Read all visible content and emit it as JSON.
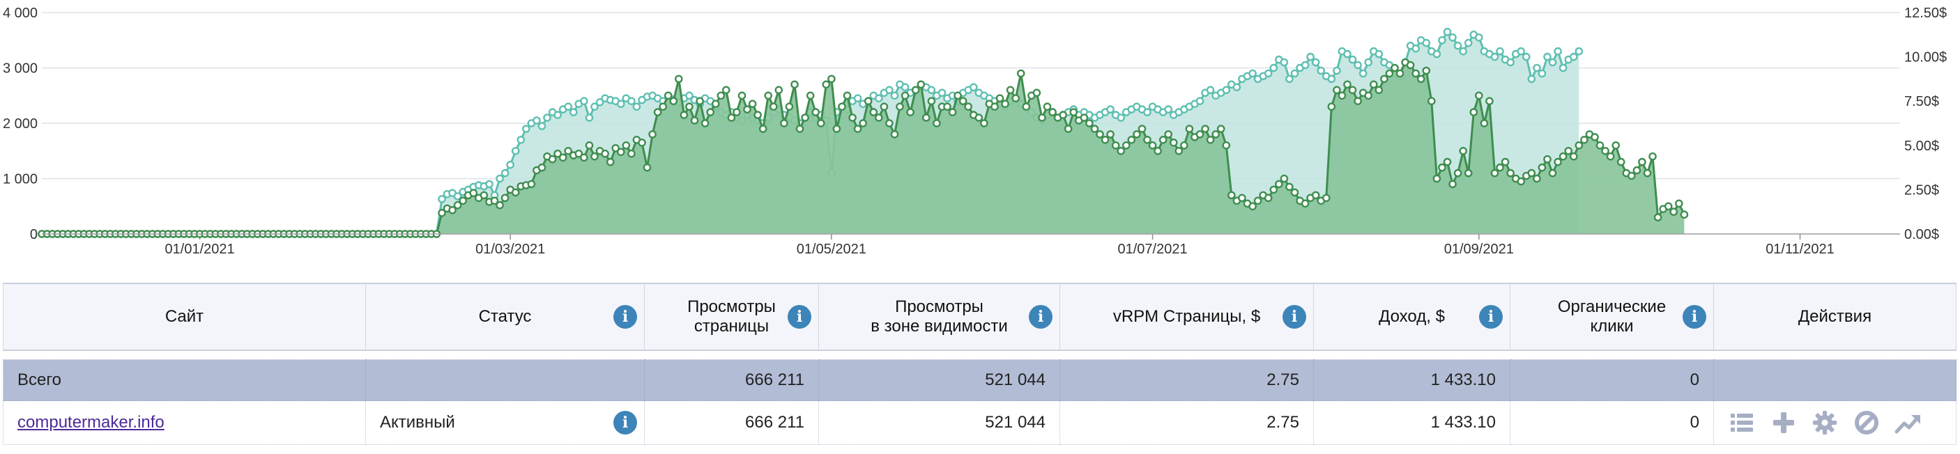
{
  "chart_data": {
    "type": "area",
    "x_ticks": [
      "01/01/2021",
      "01/03/2021",
      "01/05/2021",
      "01/07/2021",
      "01/09/2021",
      "01/11/2021"
    ],
    "y_ticks": [
      "0",
      "1 000",
      "2 000",
      "3 000",
      "4 000"
    ],
    "y2_ticks": [
      "0.00$",
      "2.50$",
      "5.00$",
      "7.50$",
      "10.00$",
      "12.50$"
    ],
    "ylim": [
      0,
      4000
    ],
    "y2lim": [
      0,
      12.5
    ],
    "grid": true,
    "colors": {
      "teal": "#5ebfb1",
      "teal_fill": "#bfe4df",
      "green": "#3f8d4f",
      "green_fill": "#87c49a"
    },
    "series": [
      {
        "axis": "left",
        "start": "2020-12-02",
        "values": [
          0,
          0,
          0,
          0,
          0,
          0,
          0,
          0,
          0,
          0,
          0,
          0,
          0,
          0,
          0,
          0,
          0,
          0,
          0,
          0,
          0,
          0,
          0,
          0,
          0,
          0,
          0,
          0,
          0,
          0,
          0,
          0,
          0,
          0,
          0,
          0,
          0,
          0,
          0,
          0,
          0,
          0,
          0,
          0,
          0,
          0,
          0,
          0,
          0,
          0,
          0,
          0,
          0,
          0,
          0,
          0,
          0,
          0,
          0,
          0,
          0,
          0,
          0,
          0,
          0,
          0,
          0,
          0,
          0,
          0,
          0,
          0,
          0,
          0,
          0,
          0,
          630,
          720,
          740,
          680,
          760,
          800,
          850,
          880,
          860,
          900,
          700,
          1000,
          1100,
          1250,
          1500,
          1700,
          1900,
          2000,
          2050,
          1950,
          2100,
          2200,
          2150,
          2250,
          2300,
          2200,
          2350,
          2400,
          2100,
          2300,
          2380,
          2450,
          2420,
          2400,
          2350,
          2450,
          2400,
          2300,
          2420,
          2480,
          2500,
          2450,
          2400,
          2500,
          2430,
          2380,
          2450,
          2500,
          2420,
          2350,
          2450,
          2400,
          2300,
          2200,
          2150,
          2200,
          2100,
          2050,
          2150,
          2100,
          2050,
          2000,
          2100,
          2200,
          2250,
          2150,
          2100,
          2050,
          2000,
          2100,
          2200,
          2100,
          2150,
          2050,
          1100,
          2200,
          2300,
          2250,
          2400,
          2450,
          2350,
          2400,
          2500,
          2450,
          2550,
          2600,
          2500,
          2700,
          2650,
          2550,
          2600,
          2700,
          2650,
          2600,
          2500,
          2550,
          2450,
          2500,
          2400,
          2550,
          2600,
          2650,
          2550,
          2500,
          2450,
          2400,
          2350,
          2300,
          2400,
          2450,
          2350,
          2300,
          2200,
          2100,
          2050,
          2150,
          2200,
          2100,
          2150,
          2200,
          2250,
          2150,
          2200,
          2150,
          2100,
          2150,
          2200,
          2250,
          2150,
          2100,
          2200,
          2250,
          2300,
          2250,
          2200,
          2300,
          2250,
          2200,
          2250,
          2150,
          2200,
          2250,
          2300,
          2350,
          2400,
          2550,
          2600,
          2500,
          2550,
          2600,
          2700,
          2650,
          2800,
          2850,
          2900,
          2800,
          2850,
          2900,
          3000,
          3150,
          3100,
          2800,
          2900,
          3000,
          3050,
          3200,
          3100,
          2950,
          2850,
          2800,
          2950,
          3300,
          3250,
          3150,
          3050,
          2900,
          3100,
          3300,
          3250,
          3100,
          3050,
          2900,
          2850,
          3100,
          3400,
          3350,
          3500,
          3450,
          3300,
          3250,
          3500,
          3650,
          3550,
          3400,
          3300,
          3450,
          3600,
          3550,
          3300,
          3250,
          3200,
          3300,
          3150,
          3100,
          3250,
          3300,
          3200,
          2800,
          3000,
          2900,
          3200,
          3100,
          3300,
          3000,
          3150,
          3200,
          3300
        ]
      },
      {
        "axis": "left",
        "start": "2020-12-02",
        "values": [
          0,
          0,
          0,
          0,
          0,
          0,
          0,
          0,
          0,
          0,
          0,
          0,
          0,
          0,
          0,
          0,
          0,
          0,
          0,
          0,
          0,
          0,
          0,
          0,
          0,
          0,
          0,
          0,
          0,
          0,
          0,
          0,
          0,
          0,
          0,
          0,
          0,
          0,
          0,
          0,
          0,
          0,
          0,
          0,
          0,
          0,
          0,
          0,
          0,
          0,
          0,
          0,
          0,
          0,
          0,
          0,
          0,
          0,
          0,
          0,
          0,
          0,
          0,
          0,
          0,
          0,
          0,
          0,
          0,
          0,
          0,
          0,
          0,
          0,
          0,
          0,
          380,
          460,
          430,
          520,
          600,
          700,
          740,
          650,
          700,
          580,
          600,
          520,
          650,
          800,
          750,
          860,
          880,
          900,
          1150,
          1200,
          1400,
          1350,
          1450,
          1380,
          1500,
          1420,
          1450,
          1380,
          1600,
          1400,
          1500,
          1450,
          1300,
          1550,
          1480,
          1600,
          1450,
          1700,
          1650,
          1200,
          1800,
          2200,
          2300,
          2500,
          2400,
          2800,
          2150,
          2300,
          2050,
          2400,
          2000,
          2200,
          2350,
          2500,
          2600,
          2100,
          2200,
          2500,
          2250,
          2350,
          2150,
          1900,
          2500,
          2300,
          2600,
          2000,
          2300,
          2700,
          1900,
          2100,
          2500,
          2200,
          2000,
          2700,
          2800,
          1900,
          2300,
          2500,
          2100,
          1900,
          2000,
          2400,
          2200,
          2100,
          2300,
          2000,
          1800,
          2300,
          2500,
          2200,
          2600,
          2700,
          2100,
          2400,
          2000,
          2300,
          2300,
          2200,
          2500,
          2400,
          2300,
          2150,
          2100,
          2000,
          2350,
          2300,
          2450,
          2350,
          2600,
          2450,
          2900,
          2300,
          2500,
          2550,
          2100,
          2300,
          2200,
          2100,
          2150,
          1900,
          2200,
          2050,
          2100,
          2000,
          1900,
          1800,
          1700,
          1800,
          1600,
          1500,
          1600,
          1700,
          1800,
          1900,
          1700,
          1600,
          1500,
          1700,
          1800,
          1650,
          1500,
          1600,
          1900,
          1750,
          1800,
          1900,
          1700,
          1800,
          1900,
          1600,
          700,
          600,
          650,
          550,
          500,
          600,
          700,
          650,
          800,
          900,
          1000,
          850,
          750,
          600,
          550,
          650,
          700,
          600,
          650,
          2300,
          2600,
          2500,
          2700,
          2600,
          2400,
          2550,
          2500,
          2700,
          2600,
          2800,
          2900,
          3000,
          2900,
          3100,
          3050,
          2900,
          2800,
          2950,
          2400,
          1000,
          1200,
          1300,
          900,
          1100,
          1500,
          1100,
          2200,
          2500,
          2000,
          2400,
          1100,
          1200,
          1300,
          1100,
          1000,
          950,
          1050,
          1100,
          1000,
          1200,
          1350,
          1100,
          1300,
          1400,
          1500,
          1400,
          1600,
          1700,
          1800,
          1750,
          1600,
          1500,
          1400,
          1600,
          1300,
          1100,
          1050,
          1150,
          1300,
          1100,
          1400,
          300,
          450,
          500,
          400,
          550,
          350
        ]
      }
    ]
  },
  "table": {
    "headers": [
      {
        "label": "Сайт",
        "info": false
      },
      {
        "label": "Статус",
        "info": true
      },
      {
        "label": "Просмотры\nстраницы",
        "info": true
      },
      {
        "label": "Просмотры\nв зоне видимости",
        "info": true
      },
      {
        "label": "vRPM Страницы, $",
        "info": true
      },
      {
        "label": "Доход, $",
        "info": true
      },
      {
        "label": "Органические\nклики",
        "info": true
      },
      {
        "label": "Действия",
        "info": false
      }
    ],
    "info_glyph": "i",
    "total": {
      "label": "Всего",
      "page_views": "666 211",
      "visible_views": "521 044",
      "vrpm": "2.75",
      "revenue": "1 433.10",
      "organic_clicks": "0"
    },
    "rows": [
      {
        "site": "computermaker.info",
        "status": "Активный",
        "page_views": "666 211",
        "visible_views": "521 044",
        "vrpm": "2.75",
        "revenue": "1 433.10",
        "organic_clicks": "0",
        "actions": [
          "list-icon",
          "plus-icon",
          "gear-icon",
          "block-icon",
          "trend-up-icon"
        ]
      }
    ]
  }
}
